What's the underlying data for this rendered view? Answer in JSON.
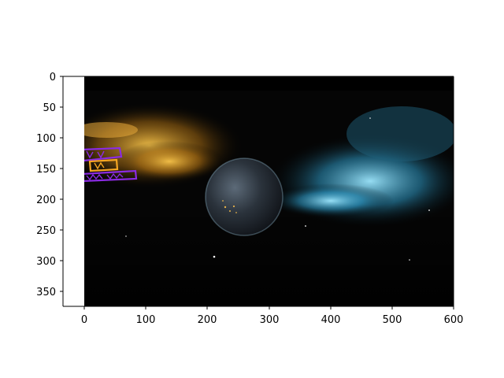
{
  "axes": {
    "x_ticks": [
      "0",
      "100",
      "200",
      "300",
      "400",
      "500",
      "600"
    ],
    "y_ticks": [
      "0",
      "50",
      "100",
      "150",
      "200",
      "250",
      "300",
      "350"
    ]
  },
  "colors": {
    "box_purple": "#8a2be2",
    "box_orange": "#f5a623",
    "space_black": "#000000"
  },
  "overlay": {
    "kind": "rotated text-detection boxes",
    "count": 3
  }
}
